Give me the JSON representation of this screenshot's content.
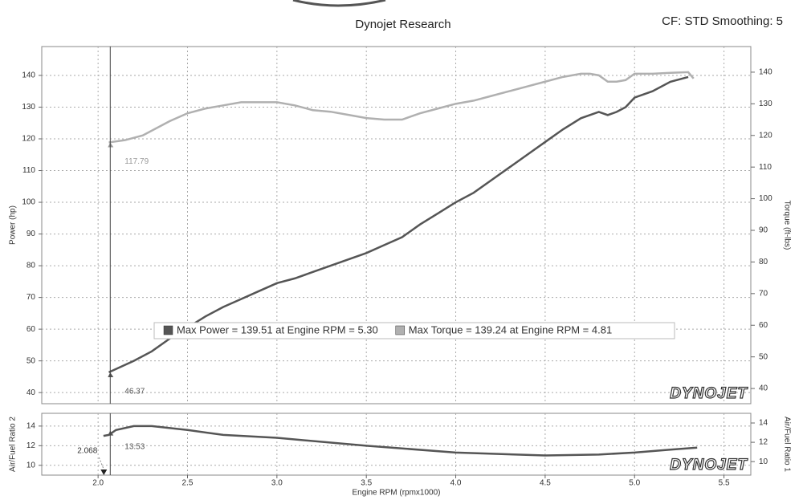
{
  "chart_data": [
    {
      "type": "line",
      "title": "Dynojet Research",
      "subtitle": "CF: STD Smoothing: 5",
      "watermark": "DYNOJET",
      "xlim": [
        1.685,
        5.65
      ],
      "ylim": [
        36.5,
        149.1
      ],
      "yticks": [
        40,
        50,
        60,
        70,
        80,
        90,
        100,
        110,
        120,
        130,
        140
      ],
      "ylabel": "Power (hp)",
      "y2lim": [
        35.2,
        148.1
      ],
      "y2ticks": [
        40,
        50,
        60,
        70,
        80,
        90,
        100,
        110,
        120,
        130,
        140
      ],
      "y2label": "Torque (ft-lbs)",
      "grid": true,
      "series": [
        {
          "name": "Max Power = 139.51 at Engine RPM = 5.30",
          "color": "#555555",
          "x": [
            2.06,
            2.2,
            2.3,
            2.4,
            2.5,
            2.6,
            2.7,
            2.8,
            2.9,
            3.0,
            3.1,
            3.2,
            3.3,
            3.4,
            3.5,
            3.6,
            3.7,
            3.8,
            3.9,
            4.0,
            4.1,
            4.2,
            4.3,
            4.4,
            4.5,
            4.6,
            4.7,
            4.8,
            4.85,
            4.9,
            4.95,
            5.0,
            5.1,
            5.2,
            5.3
          ],
          "values": [
            46.4,
            50,
            53,
            57,
            60.5,
            64,
            67,
            69.5,
            72,
            74.5,
            76,
            78,
            80,
            82,
            84,
            86.5,
            89,
            93,
            96.5,
            100,
            103,
            107,
            111,
            115,
            119,
            123,
            126.5,
            128.5,
            127.5,
            128.5,
            130,
            133,
            135,
            138,
            139.5
          ]
        },
        {
          "name": "Max Torque = 139.24 at Engine RPM = 4.81",
          "color": "#b0b0b0",
          "axis": "y2",
          "x": [
            2.06,
            2.15,
            2.25,
            2.4,
            2.5,
            2.6,
            2.7,
            2.8,
            3.0,
            3.1,
            3.2,
            3.3,
            3.4,
            3.5,
            3.6,
            3.7,
            3.8,
            3.9,
            4.0,
            4.1,
            4.2,
            4.3,
            4.4,
            4.5,
            4.6,
            4.7,
            4.75,
            4.8,
            4.85,
            4.9,
            4.95,
            5.0,
            5.1,
            5.2,
            5.3,
            5.33
          ],
          "values": [
            117.8,
            118.5,
            120,
            124.5,
            127,
            128.5,
            129.5,
            130.5,
            130.5,
            129.5,
            128,
            127.5,
            126.5,
            125.5,
            125,
            125,
            127,
            128.5,
            130,
            131,
            132.5,
            134,
            135.5,
            137,
            138.5,
            139.5,
            139.5,
            139,
            137,
            137,
            137.5,
            139.5,
            139.5,
            139.8,
            140,
            138
          ]
        }
      ],
      "annotations": [
        {
          "x": 2.068,
          "y": 46.37,
          "label": "46.37"
        },
        {
          "x": 2.068,
          "y": 117.79,
          "label": "117.79",
          "axis": "y2"
        }
      ]
    },
    {
      "type": "line",
      "watermark": "DYNOJET",
      "xlim": [
        1.685,
        5.65
      ],
      "xticks": [
        {
          "value": 2,
          "label": "2.0"
        },
        2.5,
        {
          "value": 3,
          "label": "3.0"
        },
        3.5,
        {
          "value": 4,
          "label": "4.0"
        },
        4.5,
        {
          "value": 5,
          "label": "5.0"
        },
        5.5
      ],
      "xlabel": "Engine RPM (rpmx1000)",
      "ylim": [
        9.0,
        15.3
      ],
      "yticks": [
        10,
        12,
        14
      ],
      "ylabel": "Air/Fuel Ratio 2",
      "y2lim": [
        8.6,
        15.0
      ],
      "y2ticks": [
        10,
        12,
        14
      ],
      "y2label": "Air/Fuel Ratio 1",
      "grid": true,
      "series": [
        {
          "color": "#555555",
          "x": [
            2.03,
            2.06,
            2.1,
            2.2,
            2.3,
            2.5,
            2.7,
            3.0,
            3.5,
            4.0,
            4.5,
            4.8,
            5.0,
            5.2,
            5.35
          ],
          "values": [
            13.0,
            13.1,
            13.6,
            14.0,
            14.0,
            13.6,
            13.1,
            12.8,
            12.0,
            11.3,
            11.0,
            11.1,
            11.3,
            11.6,
            11.8
          ]
        }
      ],
      "annotations": [
        {
          "x": 2.068,
          "y": 13.53,
          "label": "13.53"
        },
        {
          "x": 2.068,
          "label": "2.068"
        }
      ]
    }
  ]
}
